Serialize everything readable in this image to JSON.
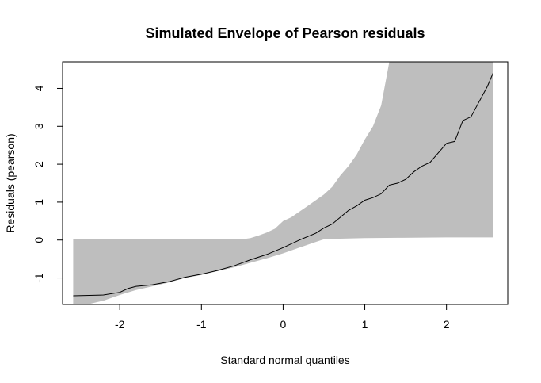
{
  "chart_data": {
    "type": "area",
    "title": "Simulated Envelope of Pearson residuals",
    "xlabel": "Standard normal quantiles",
    "ylabel": "Residuals (pearson)",
    "xlim": [
      -2.7,
      2.75
    ],
    "ylim": [
      -1.7,
      4.7
    ],
    "x_ticks": [
      -2,
      -1,
      0,
      1,
      2
    ],
    "y_ticks": [
      -1,
      0,
      1,
      2,
      3,
      4
    ],
    "grid": false,
    "legend": "none",
    "colors": {
      "envelope": "#bebebe",
      "line": "#000000",
      "axes": "#000000"
    },
    "series": [
      {
        "role": "envelope-upper",
        "x": [
          -2.57,
          -0.5,
          -0.4,
          -0.3,
          -0.2,
          -0.1,
          0.0,
          0.1,
          0.2,
          0.3,
          0.4,
          0.5,
          0.6,
          0.7,
          0.8,
          0.9,
          1.0,
          1.1,
          1.2,
          1.3,
          1.4,
          1.5,
          2.57
        ],
        "values": [
          0.02,
          0.02,
          0.05,
          0.12,
          0.2,
          0.3,
          0.5,
          0.6,
          0.75,
          0.9,
          1.05,
          1.2,
          1.4,
          1.7,
          1.95,
          2.25,
          2.65,
          3.0,
          3.55,
          4.7,
          4.7,
          4.7,
          4.7
        ]
      },
      {
        "role": "envelope-lower",
        "x": [
          -2.57,
          -2.4,
          -2.2,
          -2.0,
          -1.8,
          -1.6,
          -1.4,
          -1.2,
          -1.0,
          -0.8,
          -0.6,
          -0.4,
          -0.2,
          0.0,
          0.2,
          0.4,
          0.5,
          0.6,
          1.0,
          1.4,
          2.0,
          2.57
        ],
        "values": [
          -1.7,
          -1.7,
          -1.6,
          -1.45,
          -1.32,
          -1.22,
          -1.12,
          -1.0,
          -0.92,
          -0.82,
          -0.72,
          -0.6,
          -0.48,
          -0.35,
          -0.2,
          -0.05,
          0.02,
          0.03,
          0.05,
          0.06,
          0.07,
          0.07
        ]
      },
      {
        "role": "observed",
        "x": [
          -2.57,
          -2.2,
          -2.0,
          -1.9,
          -1.8,
          -1.6,
          -1.4,
          -1.2,
          -1.0,
          -0.8,
          -0.6,
          -0.4,
          -0.2,
          0.0,
          0.2,
          0.4,
          0.5,
          0.6,
          0.7,
          0.8,
          0.9,
          1.0,
          1.1,
          1.2,
          1.3,
          1.4,
          1.5,
          1.6,
          1.7,
          1.8,
          1.9,
          2.0,
          2.1,
          2.2,
          2.3,
          2.4,
          2.5,
          2.57
        ],
        "values": [
          -1.47,
          -1.45,
          -1.38,
          -1.28,
          -1.22,
          -1.18,
          -1.1,
          -0.98,
          -0.9,
          -0.8,
          -0.68,
          -0.52,
          -0.38,
          -0.2,
          0.0,
          0.18,
          0.32,
          0.42,
          0.6,
          0.78,
          0.9,
          1.05,
          1.12,
          1.22,
          1.45,
          1.5,
          1.6,
          1.8,
          1.95,
          2.05,
          2.3,
          2.55,
          2.6,
          3.15,
          3.25,
          3.65,
          4.05,
          4.4
        ]
      }
    ]
  }
}
